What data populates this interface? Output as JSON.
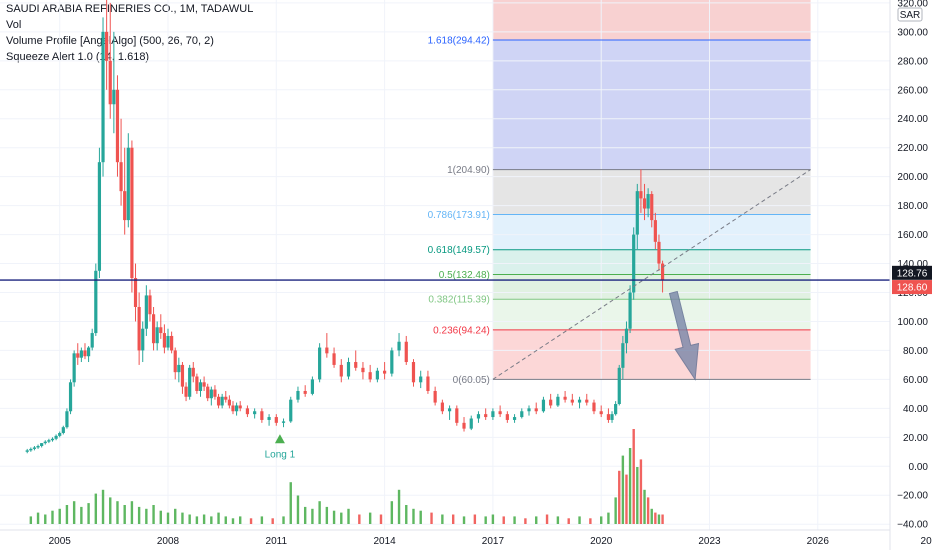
{
  "header": {
    "title": "SAUDI ARABIA REFINERIES CO., 1M, TADAWUL",
    "vol": "Vol",
    "volume_profile": "Volume Profile [AngelAlgo] (500, 26, 70, 2)",
    "squeeze_alert": "Squeeze Alert 1.0 (14, 1.618)"
  },
  "chart_data": {
    "type": "candlestick",
    "currency": "SAR",
    "x_ticks": [
      "2005",
      "2008",
      "2011",
      "2014",
      "2017",
      "2020",
      "2023",
      "2026",
      "20"
    ],
    "y_ticks": [
      320,
      300,
      280,
      260,
      240,
      220,
      200,
      180,
      160,
      140,
      120,
      100,
      80,
      60,
      40,
      20,
      0,
      -20,
      -40
    ],
    "y_tick_labels": [
      "320.00",
      "300.00",
      "280.00",
      "260.00",
      "240.00",
      "220.00",
      "200.00",
      "180.00",
      "160.00",
      "140.00",
      "120.00",
      "100.00",
      "80.00",
      "60.00",
      "40.00",
      "20.00",
      "0.00",
      "−20.00",
      "−40.00"
    ],
    "ylim": [
      -44,
      322
    ],
    "xlim": [
      2003.9,
      2028.0
    ],
    "price_labels": [
      {
        "label": "128.76",
        "value": 128.76,
        "color": "#131722"
      },
      {
        "label": "128.60",
        "value": 128.6,
        "color": "#ef5350"
      }
    ],
    "fibonacci": [
      {
        "ratio": "1.618",
        "value": 294.42,
        "label": "1.618(294.42)",
        "color": "#2962ff"
      },
      {
        "ratio": "1",
        "value": 204.9,
        "label": "1(204.90)",
        "color": "#787b86"
      },
      {
        "ratio": "0.786",
        "value": 173.91,
        "label": "0.786(173.91)",
        "color": "#64b5f6"
      },
      {
        "ratio": "0.618",
        "value": 149.57,
        "label": "0.618(149.57)",
        "color": "#089981"
      },
      {
        "ratio": "0.5",
        "value": 132.48,
        "label": "0.5(132.48)",
        "color": "#4caf50"
      },
      {
        "ratio": "0.382",
        "value": 115.39,
        "label": "0.382(115.39)",
        "color": "#81c784"
      },
      {
        "ratio": "0.236",
        "value": 94.24,
        "label": "0.236(94.24)",
        "color": "#f23645"
      },
      {
        "ratio": "0",
        "value": 60.05,
        "label": "0(60.05)",
        "color": "#787b86"
      }
    ],
    "fib_zones": [
      {
        "from": 204.9,
        "to": 322,
        "color": "#f7c9c9"
      },
      {
        "from": 204.9,
        "to": 294.42,
        "color": "#c8d5fb"
      },
      {
        "from": 173.91,
        "to": 204.9,
        "color": "#e0e0e0"
      },
      {
        "from": 149.57,
        "to": 173.91,
        "color": "#ddeefc"
      },
      {
        "from": 132.48,
        "to": 149.57,
        "color": "#d3eee9"
      },
      {
        "from": 115.39,
        "to": 132.48,
        "color": "#dceedd"
      },
      {
        "from": 94.24,
        "to": 115.39,
        "color": "#e6f4e6"
      },
      {
        "from": 60.05,
        "to": 94.24,
        "color": "#fbd0d0"
      }
    ],
    "fib_x_range": [
      2017.0,
      2025.8
    ],
    "trend_line": {
      "x1": 2017.0,
      "y1": 60.05,
      "x2": 2025.8,
      "y2": 204.9
    },
    "arrow": {
      "x1": 2022.0,
      "y1": 120,
      "x2": 2022.6,
      "y2": 60
    },
    "marker": {
      "label": "Long 1",
      "x": 2011.1,
      "y": 29
    },
    "horizontal_line": 128.6,
    "colors": {
      "up": "#26a69a",
      "down": "#ef5350",
      "vol_up": "#4caf50",
      "vol_down": "#ef5350"
    },
    "candles": [
      [
        2004.1,
        10,
        12,
        9,
        11
      ],
      [
        2004.2,
        11,
        13,
        10,
        12
      ],
      [
        2004.3,
        12,
        14,
        11,
        13
      ],
      [
        2004.4,
        13,
        15,
        12,
        14
      ],
      [
        2004.5,
        14,
        16,
        13,
        16
      ],
      [
        2004.6,
        16,
        18,
        15,
        17
      ],
      [
        2004.7,
        17,
        19,
        16,
        18
      ],
      [
        2004.8,
        18,
        20,
        17,
        19
      ],
      [
        2004.9,
        19,
        22,
        18,
        21
      ],
      [
        2005.0,
        21,
        24,
        20,
        23
      ],
      [
        2005.1,
        23,
        28,
        22,
        27
      ],
      [
        2005.2,
        27,
        40,
        26,
        38
      ],
      [
        2005.3,
        38,
        60,
        36,
        58
      ],
      [
        2005.4,
        58,
        80,
        55,
        78
      ],
      [
        2005.5,
        78,
        85,
        70,
        75
      ],
      [
        2005.6,
        75,
        82,
        72,
        80
      ],
      [
        2005.7,
        80,
        85,
        74,
        76
      ],
      [
        2005.8,
        76,
        83,
        72,
        82
      ],
      [
        2005.9,
        82,
        95,
        80,
        92
      ],
      [
        2006.0,
        92,
        140,
        90,
        135
      ],
      [
        2006.1,
        135,
        220,
        130,
        210
      ],
      [
        2006.2,
        210,
        310,
        200,
        300
      ],
      [
        2006.3,
        300,
        322,
        260,
        280
      ],
      [
        2006.4,
        280,
        320,
        240,
        250
      ],
      [
        2006.5,
        250,
        300,
        230,
        260
      ],
      [
        2006.6,
        260,
        270,
        200,
        210
      ],
      [
        2006.7,
        210,
        240,
        180,
        190
      ],
      [
        2006.8,
        190,
        220,
        160,
        170
      ],
      [
        2006.9,
        170,
        230,
        165,
        220
      ],
      [
        2007.0,
        220,
        225,
        120,
        130
      ],
      [
        2007.1,
        130,
        140,
        100,
        110
      ],
      [
        2007.2,
        110,
        120,
        70,
        80
      ],
      [
        2007.3,
        80,
        100,
        72,
        95
      ],
      [
        2007.4,
        95,
        125,
        90,
        118
      ],
      [
        2007.5,
        118,
        122,
        100,
        105
      ],
      [
        2007.6,
        105,
        110,
        80,
        85
      ],
      [
        2007.7,
        85,
        100,
        80,
        96
      ],
      [
        2007.8,
        96,
        105,
        88,
        92
      ],
      [
        2007.9,
        92,
        98,
        78,
        82
      ],
      [
        2008.0,
        82,
        95,
        80,
        90
      ],
      [
        2008.1,
        90,
        93,
        78,
        80
      ],
      [
        2008.2,
        80,
        82,
        60,
        65
      ],
      [
        2008.3,
        65,
        75,
        58,
        70
      ],
      [
        2008.4,
        70,
        72,
        50,
        55
      ],
      [
        2008.5,
        55,
        58,
        45,
        48
      ],
      [
        2008.6,
        48,
        70,
        46,
        68
      ],
      [
        2008.7,
        68,
        72,
        58,
        62
      ],
      [
        2008.8,
        62,
        64,
        50,
        52
      ],
      [
        2008.9,
        52,
        60,
        48,
        58
      ],
      [
        2009.0,
        58,
        62,
        52,
        55
      ],
      [
        2009.1,
        55,
        57,
        45,
        47
      ],
      [
        2009.2,
        47,
        55,
        42,
        53
      ],
      [
        2009.3,
        53,
        56,
        46,
        48
      ],
      [
        2009.4,
        48,
        50,
        40,
        42
      ],
      [
        2009.5,
        42,
        50,
        40,
        48
      ],
      [
        2009.6,
        48,
        52,
        44,
        46
      ],
      [
        2009.7,
        46,
        49,
        40,
        42
      ],
      [
        2009.8,
        42,
        45,
        36,
        38
      ],
      [
        2009.9,
        38,
        44,
        35,
        42
      ],
      [
        2010.0,
        42,
        45,
        38,
        40
      ],
      [
        2010.2,
        40,
        42,
        34,
        36
      ],
      [
        2010.4,
        36,
        40,
        33,
        38
      ],
      [
        2010.6,
        38,
        40,
        30,
        32
      ],
      [
        2010.8,
        32,
        36,
        28,
        34
      ],
      [
        2011.0,
        34,
        36,
        28,
        30
      ],
      [
        2011.2,
        30,
        33,
        27,
        31
      ],
      [
        2011.4,
        31,
        48,
        30,
        46
      ],
      [
        2011.6,
        46,
        55,
        44,
        52
      ],
      [
        2011.8,
        52,
        56,
        48,
        50
      ],
      [
        2012.0,
        50,
        62,
        49,
        60
      ],
      [
        2012.2,
        60,
        85,
        58,
        82
      ],
      [
        2012.4,
        82,
        92,
        75,
        78
      ],
      [
        2012.6,
        78,
        82,
        68,
        70
      ],
      [
        2012.8,
        70,
        74,
        58,
        62
      ],
      [
        2013.0,
        62,
        75,
        60,
        72
      ],
      [
        2013.2,
        72,
        80,
        66,
        68
      ],
      [
        2013.4,
        68,
        72,
        60,
        65
      ],
      [
        2013.6,
        65,
        70,
        58,
        60
      ],
      [
        2013.8,
        60,
        68,
        58,
        66
      ],
      [
        2014.0,
        66,
        72,
        60,
        64
      ],
      [
        2014.2,
        64,
        82,
        62,
        80
      ],
      [
        2014.4,
        80,
        92,
        76,
        86
      ],
      [
        2014.6,
        86,
        90,
        70,
        72
      ],
      [
        2014.8,
        72,
        74,
        55,
        58
      ],
      [
        2015.0,
        58,
        66,
        54,
        62
      ],
      [
        2015.2,
        62,
        66,
        50,
        52
      ],
      [
        2015.4,
        52,
        55,
        42,
        44
      ],
      [
        2015.6,
        44,
        46,
        36,
        38
      ],
      [
        2015.8,
        38,
        42,
        32,
        40
      ],
      [
        2016.0,
        40,
        42,
        28,
        30
      ],
      [
        2016.2,
        30,
        34,
        24,
        26
      ],
      [
        2016.4,
        26,
        35,
        25,
        33
      ],
      [
        2016.6,
        33,
        38,
        30,
        36
      ],
      [
        2016.8,
        36,
        40,
        32,
        34
      ],
      [
        2017.0,
        34,
        40,
        32,
        38
      ],
      [
        2017.2,
        38,
        42,
        34,
        36
      ],
      [
        2017.4,
        36,
        38,
        30,
        32
      ],
      [
        2017.6,
        32,
        36,
        30,
        34
      ],
      [
        2017.8,
        34,
        40,
        33,
        38
      ],
      [
        2018.0,
        38,
        42,
        35,
        40
      ],
      [
        2018.2,
        40,
        44,
        36,
        38
      ],
      [
        2018.4,
        38,
        48,
        37,
        46
      ],
      [
        2018.6,
        46,
        50,
        40,
        42
      ],
      [
        2018.8,
        42,
        50,
        41,
        48
      ],
      [
        2019.0,
        48,
        52,
        44,
        46
      ],
      [
        2019.2,
        46,
        50,
        42,
        44
      ],
      [
        2019.4,
        44,
        48,
        40,
        46
      ],
      [
        2019.6,
        46,
        50,
        42,
        44
      ],
      [
        2019.8,
        44,
        46,
        36,
        38
      ],
      [
        2020.0,
        38,
        42,
        34,
        36
      ],
      [
        2020.2,
        36,
        40,
        30,
        32
      ],
      [
        2020.3,
        32,
        38,
        30,
        36
      ],
      [
        2020.4,
        36,
        45,
        35,
        43
      ],
      [
        2020.5,
        43,
        70,
        42,
        68
      ],
      [
        2020.6,
        68,
        90,
        60,
        85
      ],
      [
        2020.7,
        85,
        100,
        78,
        95
      ],
      [
        2020.8,
        95,
        125,
        92,
        120
      ],
      [
        2020.9,
        120,
        165,
        115,
        160
      ],
      [
        2021.0,
        160,
        195,
        150,
        190
      ],
      [
        2021.1,
        190,
        205,
        175,
        185
      ],
      [
        2021.2,
        185,
        195,
        170,
        178
      ],
      [
        2021.3,
        178,
        192,
        172,
        188
      ],
      [
        2021.4,
        188,
        190,
        165,
        170
      ],
      [
        2021.5,
        170,
        175,
        150,
        155
      ],
      [
        2021.6,
        155,
        160,
        135,
        140
      ],
      [
        2021.7,
        140,
        142,
        120,
        128.6
      ]
    ],
    "volumes": [
      [
        2004.2,
        4
      ],
      [
        2004.4,
        6
      ],
      [
        2004.6,
        5
      ],
      [
        2004.8,
        7
      ],
      [
        2005.0,
        8
      ],
      [
        2005.2,
        10
      ],
      [
        2005.4,
        12
      ],
      [
        2005.6,
        9
      ],
      [
        2005.8,
        11
      ],
      [
        2006.0,
        16
      ],
      [
        2006.2,
        18
      ],
      [
        2006.4,
        14
      ],
      [
        2006.6,
        12
      ],
      [
        2006.8,
        10
      ],
      [
        2007.0,
        12
      ],
      [
        2007.2,
        9
      ],
      [
        2007.4,
        8
      ],
      [
        2007.6,
        10
      ],
      [
        2007.8,
        7
      ],
      [
        2008.0,
        6
      ],
      [
        2008.2,
        8
      ],
      [
        2008.4,
        6
      ],
      [
        2008.6,
        5
      ],
      [
        2008.8,
        4
      ],
      [
        2009.0,
        5
      ],
      [
        2009.2,
        4
      ],
      [
        2009.4,
        6
      ],
      [
        2009.6,
        4
      ],
      [
        2009.8,
        3
      ],
      [
        2010.0,
        4
      ],
      [
        2010.3,
        3
      ],
      [
        2010.6,
        4
      ],
      [
        2010.9,
        3
      ],
      [
        2011.2,
        4
      ],
      [
        2011.4,
        22
      ],
      [
        2011.6,
        15
      ],
      [
        2011.8,
        9
      ],
      [
        2012.0,
        8
      ],
      [
        2012.2,
        12
      ],
      [
        2012.4,
        9
      ],
      [
        2012.6,
        7
      ],
      [
        2012.8,
        6
      ],
      [
        2013.0,
        8
      ],
      [
        2013.3,
        5
      ],
      [
        2013.6,
        6
      ],
      [
        2013.9,
        5
      ],
      [
        2014.2,
        12
      ],
      [
        2014.4,
        18
      ],
      [
        2014.6,
        10
      ],
      [
        2014.8,
        8
      ],
      [
        2015.0,
        7
      ],
      [
        2015.3,
        6
      ],
      [
        2015.6,
        5
      ],
      [
        2015.9,
        5
      ],
      [
        2016.2,
        4
      ],
      [
        2016.5,
        5
      ],
      [
        2016.8,
        4
      ],
      [
        2017.0,
        5
      ],
      [
        2017.3,
        4
      ],
      [
        2017.6,
        4
      ],
      [
        2017.9,
        3
      ],
      [
        2018.2,
        4
      ],
      [
        2018.5,
        5
      ],
      [
        2018.8,
        4
      ],
      [
        2019.1,
        3
      ],
      [
        2019.4,
        4
      ],
      [
        2019.7,
        3
      ],
      [
        2020.0,
        4
      ],
      [
        2020.2,
        6
      ],
      [
        2020.4,
        14
      ],
      [
        2020.5,
        28
      ],
      [
        2020.6,
        36
      ],
      [
        2020.7,
        26
      ],
      [
        2020.8,
        40
      ],
      [
        2020.9,
        50
      ],
      [
        2021.0,
        30
      ],
      [
        2021.1,
        34
      ],
      [
        2021.2,
        18
      ],
      [
        2021.3,
        14
      ],
      [
        2021.4,
        8
      ],
      [
        2021.5,
        6
      ],
      [
        2021.6,
        5
      ],
      [
        2021.7,
        5
      ]
    ]
  }
}
